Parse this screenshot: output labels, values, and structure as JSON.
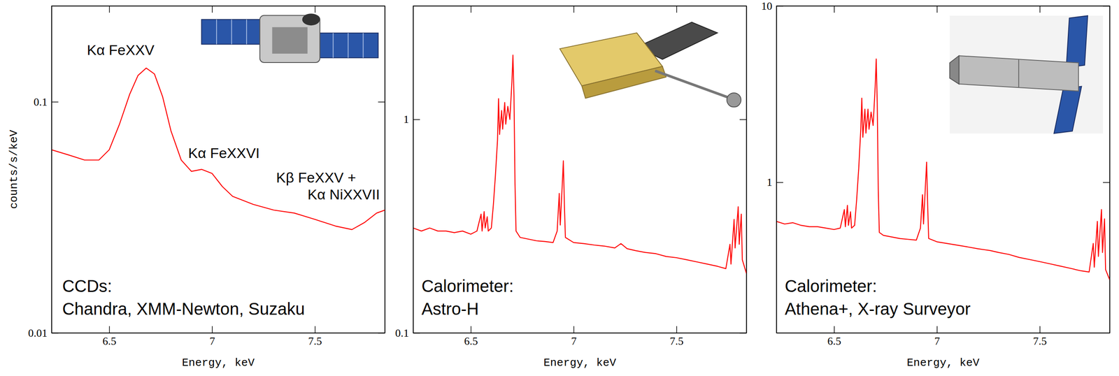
{
  "chart_data": [
    {
      "type": "line",
      "log": "y",
      "xlabel": "Energy, keV",
      "ylabel": "counts/s/keV",
      "xlim": [
        6.22,
        7.84
      ],
      "xticks": [
        6.5,
        7,
        7.5
      ],
      "ylim": [
        0.01,
        0.26
      ],
      "yticks": [
        0.01,
        0.1
      ],
      "color": "#ff0000",
      "x": [
        6.22,
        6.3,
        6.38,
        6.45,
        6.5,
        6.55,
        6.6,
        6.64,
        6.68,
        6.72,
        6.76,
        6.8,
        6.85,
        6.9,
        6.95,
        7.0,
        7.05,
        7.1,
        7.2,
        7.3,
        7.4,
        7.5,
        7.6,
        7.68,
        7.74,
        7.8,
        7.84
      ],
      "values": [
        0.062,
        0.059,
        0.056,
        0.056,
        0.062,
        0.08,
        0.108,
        0.13,
        0.14,
        0.132,
        0.105,
        0.075,
        0.056,
        0.05,
        0.051,
        0.049,
        0.043,
        0.039,
        0.036,
        0.034,
        0.033,
        0.031,
        0.029,
        0.028,
        0.03,
        0.033,
        0.034
      ],
      "annotations": [
        "Kα FeXXV",
        "Kα FeXXVI",
        "Kβ FeXXV +",
        "Kα NiXXVII",
        "CCDs:",
        "Chandra, XMM-Newton, Suzaku"
      ]
    },
    {
      "type": "line",
      "log": "y",
      "xlabel": "Energy, keV",
      "xlim": [
        6.22,
        7.84
      ],
      "xticks": [
        6.5,
        7,
        7.5
      ],
      "ylim": [
        0.1,
        3.4
      ],
      "yticks": [
        0.1,
        1
      ],
      "color": "#ff0000",
      "x": [
        6.22,
        6.26,
        6.3,
        6.34,
        6.38,
        6.42,
        6.46,
        6.5,
        6.53,
        6.55,
        6.555,
        6.565,
        6.57,
        6.58,
        6.585,
        6.6,
        6.61,
        6.62,
        6.63,
        6.635,
        6.64,
        6.65,
        6.655,
        6.665,
        6.67,
        6.68,
        6.69,
        6.7,
        6.705,
        6.71,
        6.715,
        6.72,
        6.74,
        6.78,
        6.82,
        6.86,
        6.9,
        6.92,
        6.93,
        6.935,
        6.945,
        6.95,
        6.955,
        6.96,
        7.0,
        7.05,
        7.1,
        7.15,
        7.2,
        7.23,
        7.26,
        7.3,
        7.35,
        7.4,
        7.45,
        7.5,
        7.55,
        7.6,
        7.65,
        7.7,
        7.74,
        7.76,
        7.765,
        7.78,
        7.785,
        7.8,
        7.805,
        7.815,
        7.82,
        7.84
      ],
      "values": [
        0.31,
        0.3,
        0.31,
        0.3,
        0.3,
        0.295,
        0.3,
        0.29,
        0.3,
        0.36,
        0.3,
        0.37,
        0.31,
        0.35,
        0.3,
        0.31,
        0.4,
        0.55,
        0.8,
        1.25,
        0.85,
        1.1,
        0.9,
        1.2,
        0.95,
        1.15,
        1.0,
        1.5,
        2.0,
        1.3,
        0.5,
        0.3,
        0.28,
        0.275,
        0.27,
        0.268,
        0.265,
        0.3,
        0.45,
        0.32,
        0.5,
        0.64,
        0.4,
        0.28,
        0.265,
        0.262,
        0.258,
        0.255,
        0.25,
        0.262,
        0.248,
        0.243,
        0.238,
        0.235,
        0.228,
        0.225,
        0.22,
        0.215,
        0.21,
        0.205,
        0.2,
        0.26,
        0.21,
        0.34,
        0.25,
        0.39,
        0.26,
        0.36,
        0.22,
        0.19
      ],
      "annotations": [
        "Calorimeter:",
        "Astro-H"
      ]
    },
    {
      "type": "line",
      "log": "y",
      "xlabel": "Energy, keV",
      "xlim": [
        6.22,
        7.84
      ],
      "xticks": [
        6.5,
        7,
        7.5
      ],
      "ylim": [
        0.14,
        10
      ],
      "yticks": [
        1,
        10
      ],
      "color": "#ff0000",
      "x": [
        6.22,
        6.26,
        6.3,
        6.34,
        6.38,
        6.42,
        6.46,
        6.5,
        6.53,
        6.55,
        6.555,
        6.565,
        6.57,
        6.58,
        6.585,
        6.6,
        6.61,
        6.62,
        6.63,
        6.635,
        6.64,
        6.65,
        6.655,
        6.665,
        6.67,
        6.68,
        6.69,
        6.7,
        6.705,
        6.71,
        6.715,
        6.72,
        6.74,
        6.78,
        6.82,
        6.86,
        6.9,
        6.92,
        6.93,
        6.935,
        6.945,
        6.95,
        6.955,
        6.96,
        7.0,
        7.05,
        7.1,
        7.15,
        7.2,
        7.23,
        7.26,
        7.3,
        7.35,
        7.4,
        7.45,
        7.5,
        7.55,
        7.6,
        7.65,
        7.7,
        7.74,
        7.76,
        7.765,
        7.78,
        7.785,
        7.8,
        7.805,
        7.815,
        7.82,
        7.84
      ],
      "values": [
        0.6,
        0.58,
        0.59,
        0.57,
        0.56,
        0.56,
        0.55,
        0.54,
        0.55,
        0.7,
        0.56,
        0.74,
        0.57,
        0.68,
        0.55,
        0.57,
        0.8,
        1.2,
        2.0,
        3.0,
        1.8,
        2.6,
        1.9,
        2.6,
        2.0,
        2.5,
        2.1,
        3.5,
        5.0,
        2.8,
        0.9,
        0.52,
        0.5,
        0.49,
        0.48,
        0.475,
        0.47,
        0.55,
        0.85,
        0.58,
        1.0,
        1.3,
        0.75,
        0.48,
        0.46,
        0.45,
        0.44,
        0.43,
        0.42,
        0.415,
        0.41,
        0.4,
        0.39,
        0.375,
        0.365,
        0.355,
        0.345,
        0.335,
        0.325,
        0.315,
        0.31,
        0.45,
        0.33,
        0.6,
        0.38,
        0.7,
        0.4,
        0.62,
        0.32,
        0.28
      ],
      "annotations": [
        "Calorimeter:",
        "Athena+, X-ray Surveyor"
      ]
    }
  ]
}
